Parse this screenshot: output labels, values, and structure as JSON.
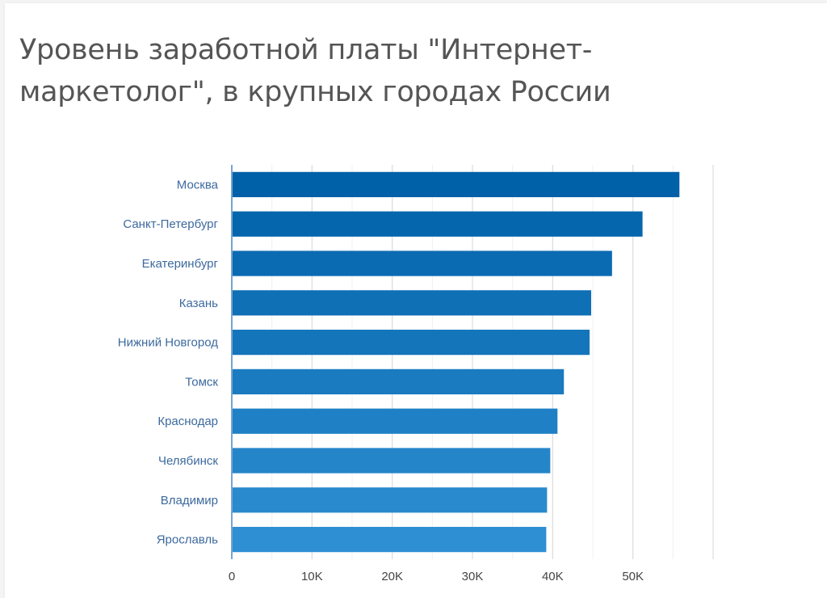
{
  "chart_data": {
    "type": "bar",
    "orientation": "horizontal",
    "title": "Уровень заработной платы \"Интернет-маркетолог\", в крупных городах России",
    "xlabel": "",
    "ylabel": "",
    "categories": [
      "Москва",
      "Санкт-Петербург",
      "Екатеринбург",
      "Казань",
      "Нижний Новгород",
      "Томск",
      "Краснодар",
      "Челябинск",
      "Владимир",
      "Ярославль"
    ],
    "values": [
      55800,
      51200,
      47400,
      44800,
      44600,
      41400,
      40600,
      39700,
      39300,
      39200
    ],
    "xlim": [
      0,
      60000
    ],
    "x_ticks": [
      0,
      10000,
      20000,
      30000,
      40000,
      50000
    ],
    "x_tick_labels": [
      "0",
      "10K",
      "20K",
      "30K",
      "40K",
      "50K"
    ],
    "grid": true,
    "legend": "none",
    "colors": {
      "bar_start": "#0061a8",
      "bar_end": "#2f8fd3",
      "grid": "#e6e6e6",
      "axis": "#4a86c2"
    }
  }
}
